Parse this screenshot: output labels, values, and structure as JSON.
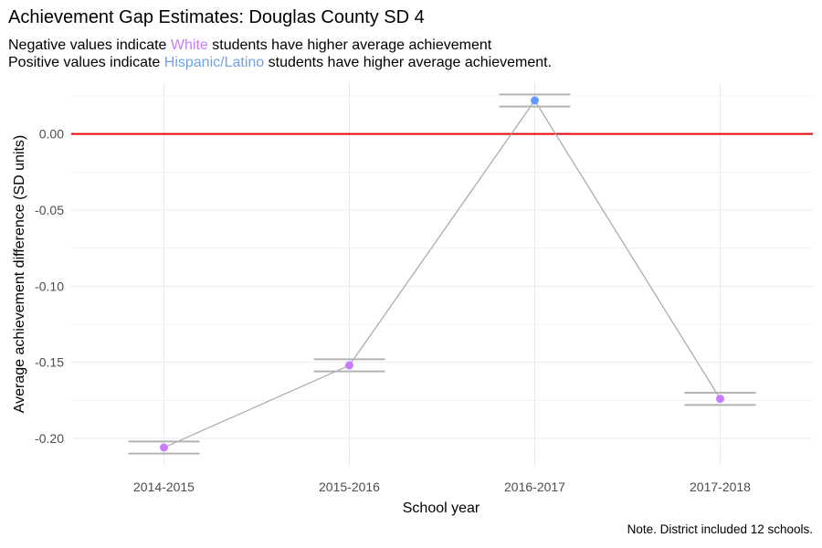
{
  "chart_data": {
    "type": "line",
    "title": "Achievement Gap Estimates: Douglas County SD 4",
    "subtitle": {
      "line1": {
        "prefix": "Negative values indicate ",
        "highlight": "White",
        "suffix": " students have higher average achievement"
      },
      "line2": {
        "prefix": "Positive values indicate ",
        "highlight": "Hispanic/Latino",
        "suffix": " students have higher average achievement."
      }
    },
    "xlabel": "School year",
    "ylabel": "Average achievement difference (SD units)",
    "categories": [
      "2014-2015",
      "2015-2016",
      "2016-2017",
      "2017-2018"
    ],
    "series": [
      {
        "values": [
          -0.206,
          -0.152,
          0.022,
          -0.174
        ],
        "ci_lower": [
          -0.21,
          -0.156,
          0.018,
          -0.178
        ],
        "ci_upper": [
          -0.202,
          -0.148,
          0.026,
          -0.17
        ]
      }
    ],
    "ylim": [
      -0.218,
      0.034
    ],
    "yticks": [
      0.0,
      -0.05,
      -0.1,
      -0.15,
      -0.2
    ],
    "ytick_labels": [
      "0.00",
      "-0.05",
      "-0.10",
      "-0.15",
      "-0.20"
    ],
    "reference_line": {
      "y": 0,
      "color": "#e8000b"
    },
    "grid": true,
    "colors": {
      "negative_point": "#c77cff",
      "positive_point": "#619cff",
      "connector_line": "#a6a6a6",
      "error_bar": "#b3b3b3",
      "grid": "#ebebeb",
      "white_text": "#c77cff",
      "hispanic_text": "#6fa3e8"
    },
    "note": "Note. District included 12 schools."
  }
}
